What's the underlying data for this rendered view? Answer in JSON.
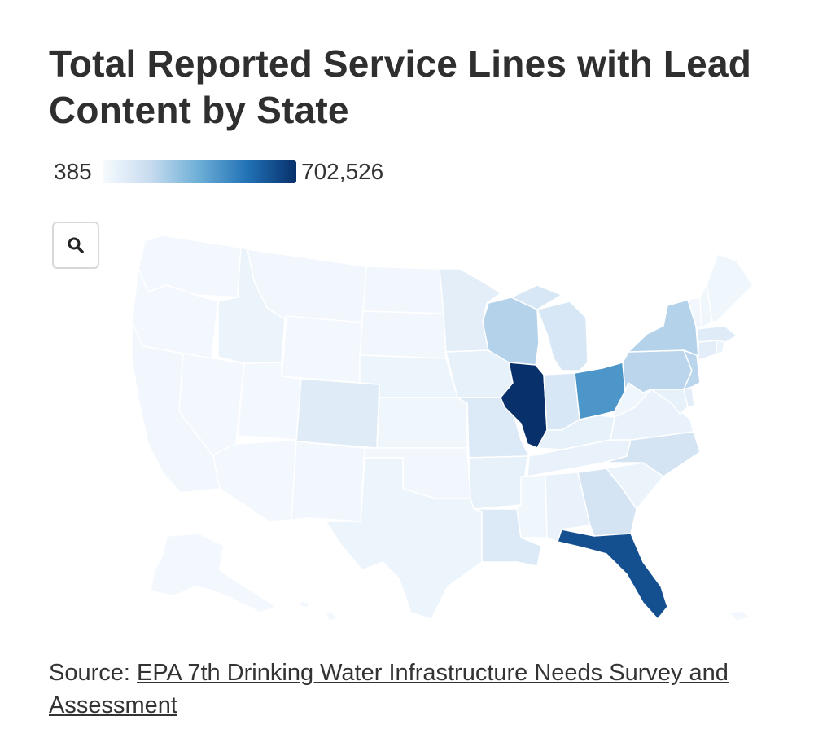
{
  "title": "Total Reported Service Lines with Lead Content by State",
  "legend": {
    "min_label": "385",
    "max_label": "702,526"
  },
  "zoom_button": {
    "icon": "search-icon"
  },
  "source": {
    "prefix": "Source: ",
    "link_text": "EPA 7th Drinking Water Infrastructure Needs Survey and Assessment"
  },
  "color_scale": [
    "#f7fbff",
    "#c6dbef",
    "#6baed6",
    "#2171b5",
    "#08306b"
  ],
  "map_data": {
    "type": "choropleth",
    "metric": "Total Reported Service Lines with Lead Content",
    "range": [
      385,
      702526
    ],
    "shading_level_by_state": {
      "WA": 0.02,
      "OR": 0.02,
      "CA": 0.03,
      "NV": 0.02,
      "ID": 0.06,
      "MT": 0.03,
      "WY": 0.02,
      "UT": 0.02,
      "AZ": 0.02,
      "NM": 0.03,
      "CO": 0.12,
      "ND": 0.03,
      "SD": 0.03,
      "NE": 0.05,
      "KS": 0.04,
      "OK": 0.03,
      "TX": 0.05,
      "MN": 0.1,
      "IA": 0.08,
      "MO": 0.14,
      "AR": 0.08,
      "LA": 0.14,
      "WI": 0.3,
      "IL": 1.0,
      "MI": 0.16,
      "IN": 0.16,
      "OH": 0.6,
      "KY": 0.08,
      "TN": 0.07,
      "MS": 0.04,
      "AL": 0.07,
      "GA": 0.18,
      "FL": 0.88,
      "SC": 0.06,
      "NC": 0.18,
      "VA": 0.07,
      "WV": 0.04,
      "PA": 0.28,
      "NY": 0.3,
      "NJ": 0.28,
      "DE": 0.1,
      "MD": 0.08,
      "CT": 0.1,
      "RI": 0.06,
      "MA": 0.12,
      "VT": 0.03,
      "NH": 0.04,
      "ME": 0.04,
      "AK": 0.02,
      "HI": 0.02
    }
  }
}
